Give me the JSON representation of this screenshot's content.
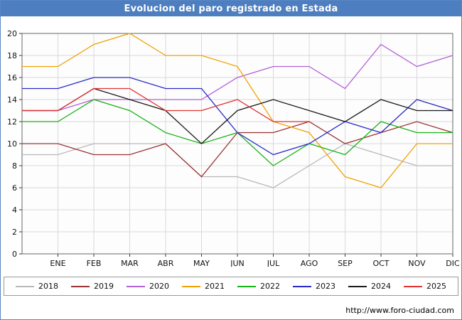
{
  "window": {
    "title": "Evolucion del paro registrado en Estada"
  },
  "footer": {
    "url": "http://www.foro-ciudad.com"
  },
  "chart_data": {
    "type": "line",
    "title": "Evolucion del paro registrado en Estada",
    "categories": [
      "ENE",
      "FEB",
      "MAR",
      "ABR",
      "MAY",
      "JUN",
      "JUL",
      "AGO",
      "SEP",
      "OCT",
      "NOV",
      "DIC"
    ],
    "ylim": [
      0,
      20
    ],
    "ytick_step": 2,
    "grid": true,
    "legend_position": "bottom",
    "colors": {
      "titlebar": "#4d7ebf",
      "gridline": "#d9d9d9",
      "plot_border": "#666666"
    },
    "series": [
      {
        "name": "2018",
        "color": "#b8b8b8",
        "values": [
          9,
          10,
          10,
          10,
          7,
          7,
          6,
          8,
          10,
          9,
          8,
          8
        ]
      },
      {
        "name": "2019",
        "color": "#9a3334",
        "values": [
          10,
          9,
          9,
          10,
          7,
          11,
          11,
          12,
          10,
          11,
          12,
          11
        ]
      },
      {
        "name": "2020",
        "color": "#b35fd6",
        "values": [
          13,
          14,
          14,
          14,
          14,
          16,
          17,
          17,
          15,
          19,
          17,
          18
        ]
      },
      {
        "name": "2021",
        "color": "#f0a202",
        "values": [
          17,
          19,
          20,
          18,
          18,
          17,
          12,
          11,
          7,
          6,
          10,
          10
        ]
      },
      {
        "name": "2022",
        "color": "#17b317",
        "values": [
          12,
          14,
          13,
          11,
          10,
          11,
          8,
          10,
          9,
          12,
          11,
          11
        ]
      },
      {
        "name": "2023",
        "color": "#2929c8",
        "values": [
          15,
          16,
          16,
          15,
          15,
          11,
          9,
          10,
          12,
          11,
          14,
          13
        ]
      },
      {
        "name": "2024",
        "color": "#1a1a1a",
        "values": [
          13,
          15,
          14,
          13,
          10,
          13,
          14,
          13,
          12,
          14,
          13,
          13
        ]
      },
      {
        "name": "2025",
        "color": "#e03131",
        "values": [
          13,
          15,
          15,
          13,
          13,
          14,
          12,
          12
        ]
      }
    ]
  }
}
